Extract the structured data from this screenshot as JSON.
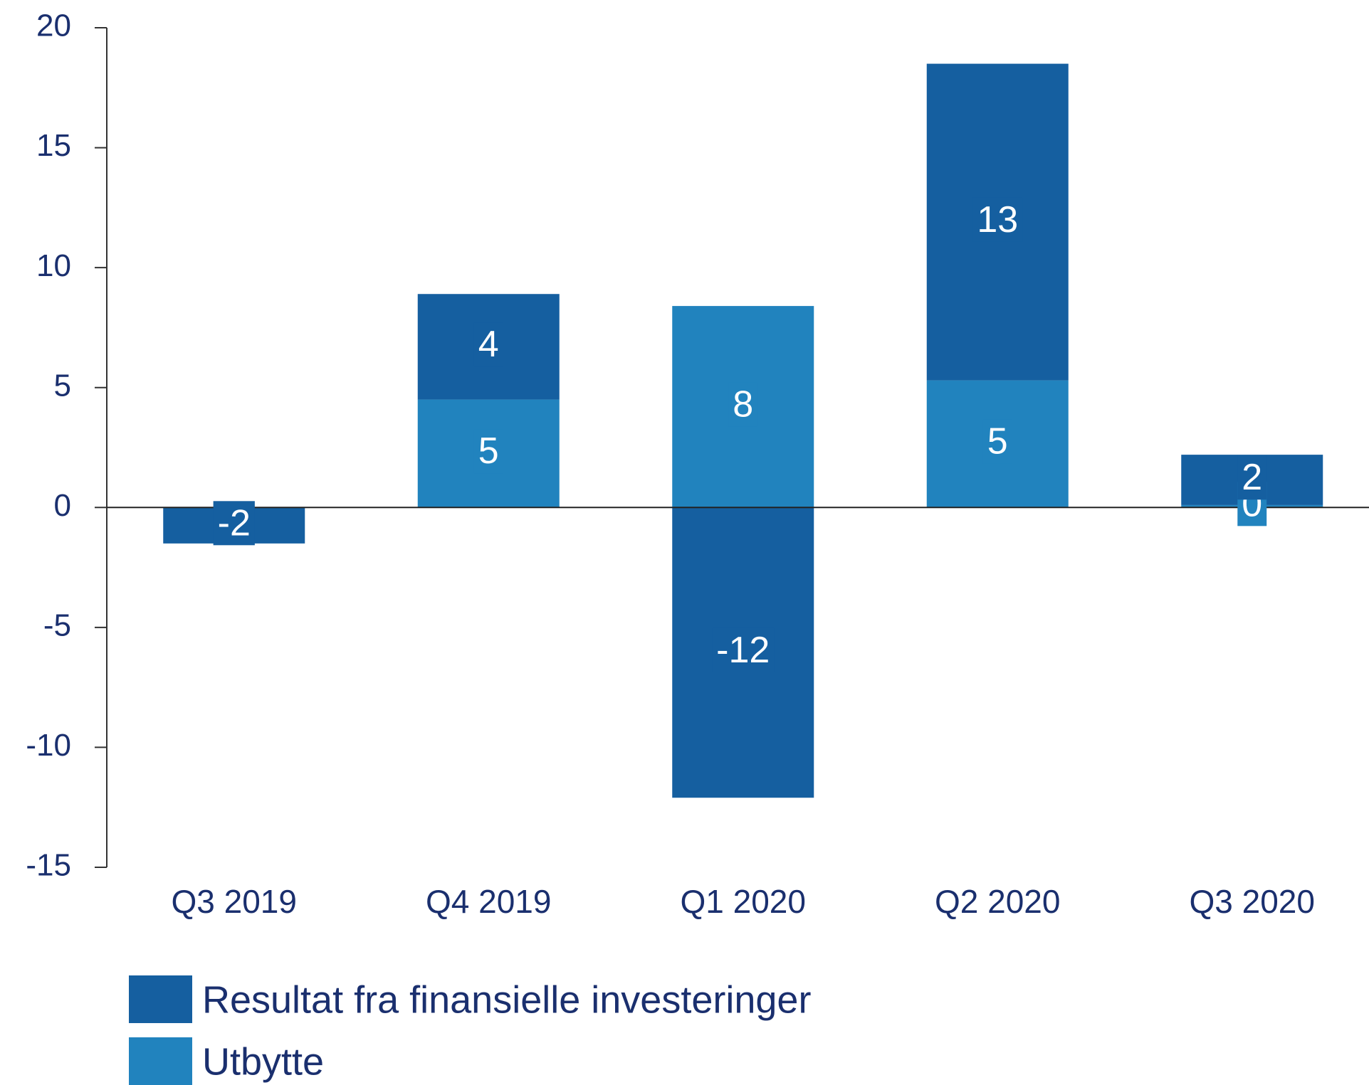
{
  "chart_data": {
    "type": "stacked_bar",
    "categories": [
      "Q3 2019",
      "Q4 2019",
      "Q1 2020",
      "Q2 2020",
      "Q3 2020"
    ],
    "series": [
      {
        "name": "Resultat fra finansielle investeringer",
        "color": "#155fa0",
        "values": [
          -1.5,
          4.4,
          -12.1,
          13.2,
          2.1
        ],
        "value_labels": [
          "-2",
          "4",
          "-12",
          "13",
          "2"
        ]
      },
      {
        "name": "Utbytte",
        "color": "#2183be",
        "values": [
          null,
          4.5,
          8.4,
          5.3,
          0.1
        ],
        "value_labels": [
          null,
          "5",
          "8",
          "5",
          "0"
        ]
      }
    ],
    "ylim": [
      -15,
      20
    ],
    "yticks": [
      -15,
      -10,
      -5,
      0,
      5,
      10,
      15,
      20
    ]
  }
}
